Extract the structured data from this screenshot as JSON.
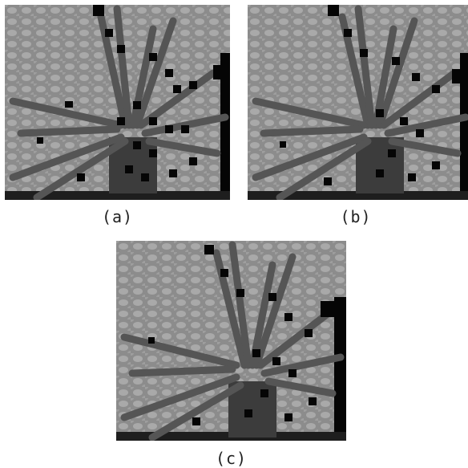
{
  "figure": {
    "panels": [
      {
        "id": "a",
        "caption": "(a)",
        "description_icon": "plant-photo-icon"
      },
      {
        "id": "b",
        "caption": "(b)",
        "description_icon": "plant-photo-icon"
      },
      {
        "id": "c",
        "caption": "(c)",
        "description_icon": "plant-photo-icon"
      }
    ]
  },
  "colors": {
    "background": "#ffffff",
    "texture": "#8c8c8c",
    "texture_light": "#a9a9a9",
    "leaf": "#555555",
    "block": "#050505",
    "pot": "#3c3c3c"
  }
}
